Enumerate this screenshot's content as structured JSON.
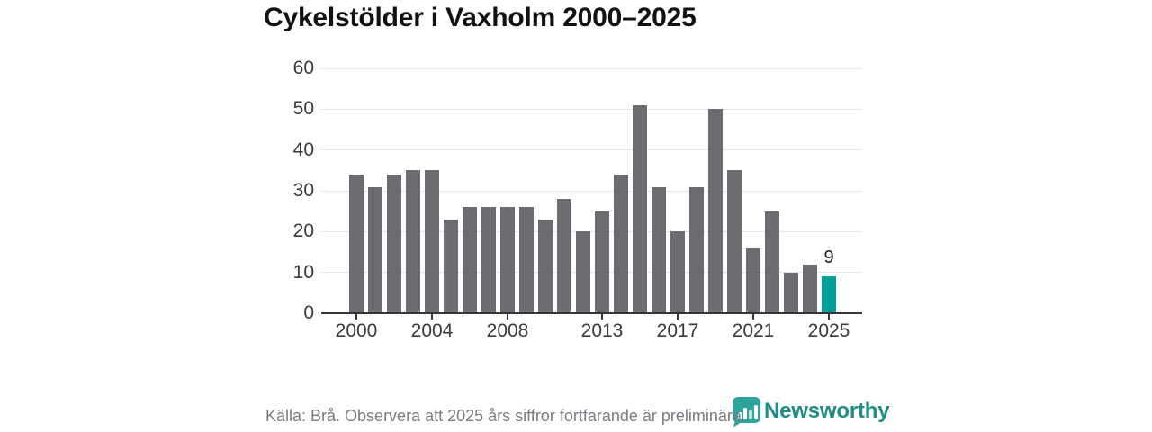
{
  "title": "Cykelstölder i Vaxholm 2000–2025",
  "chart_data": {
    "type": "bar",
    "title": "Cykelstölder i Vaxholm 2000–2025",
    "x": [
      2000,
      2001,
      2002,
      2003,
      2004,
      2005,
      2006,
      2007,
      2008,
      2009,
      2010,
      2011,
      2012,
      2013,
      2014,
      2015,
      2016,
      2017,
      2018,
      2019,
      2020,
      2021,
      2022,
      2023,
      2024,
      2025
    ],
    "values": [
      34,
      31,
      34,
      35,
      35,
      23,
      26,
      26,
      26,
      26,
      23,
      28,
      20,
      25,
      34,
      51,
      31,
      20,
      31,
      50,
      35,
      16,
      25,
      10,
      12,
      9
    ],
    "xlabel": "",
    "ylabel": "",
    "ylim": [
      0,
      60
    ],
    "yticks": [
      0,
      10,
      20,
      30,
      40,
      50,
      60
    ],
    "xtick_labels": [
      2000,
      2004,
      2008,
      2013,
      2017,
      2021,
      2025
    ],
    "grid": "horizontal",
    "legend": "none",
    "bar_color": "#6b6b70",
    "highlight_year": 2025,
    "highlight_color": "#00a19b",
    "highlight_value_label": "9"
  },
  "footer": {
    "source_note": "Källa: Brå. Observera att 2025 års siffror fortfarande är preliminära."
  },
  "branding": {
    "wordmark": "Newsworthy",
    "icon": "bar-chart-speech-bubble-icon",
    "wordmark_color": "#1f8c87",
    "icon_color": "#2fa39d"
  }
}
